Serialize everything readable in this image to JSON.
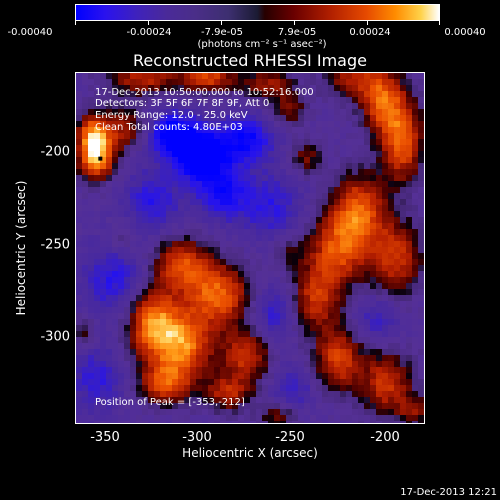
{
  "colorbar": {
    "ticks": [
      "-0.00040",
      "-0.00024",
      "-7.9e-05",
      "7.9e-05",
      "0.00024",
      "0.00040"
    ],
    "units": "(photons cm⁻² s⁻¹ asec⁻²)"
  },
  "chart_data": {
    "type": "heatmap",
    "title": "Reconstructed RHESSI Image",
    "xlabel": "Heliocentric X (arcsec)",
    "ylabel": "Heliocentric Y (arcsec)",
    "xlim": [
      -366,
      -180
    ],
    "ylim": [
      -354,
      -166
    ],
    "x_ticks": [
      "-350",
      "-300",
      "-250",
      "-200"
    ],
    "y_ticks": [
      "-200",
      "-250",
      "-300"
    ],
    "color_range": [
      -0.0004,
      0.0004
    ],
    "colormap": "blue-purple-black-red-yellow-white",
    "annotations": [
      "17-Dec-2013 10:50:00.000 to 10:52:16.000",
      "Detectors: 3F 5F 6F 7F 8F 9F, Att 0",
      "Energy Range: 12.0 - 25.0 keV",
      "Clean     Total counts: 4.80E+03"
    ],
    "peak_label": "Position of Peak = [-353,-212]",
    "peak": [
      -353,
      -212
    ],
    "blobs": [
      {
        "x": -355,
        "y": -212,
        "v": 0.0004,
        "sx": 7,
        "sy": 8
      },
      {
        "x": -357,
        "y": -199,
        "v": 0.00034,
        "sx": 6,
        "sy": 8
      },
      {
        "x": -340,
        "y": -196,
        "v": 0.00022,
        "sx": 10,
        "sy": 8
      },
      {
        "x": -330,
        "y": -168,
        "v": 0.00026,
        "sx": 14,
        "sy": 7
      },
      {
        "x": -295,
        "y": -168,
        "v": 0.0003,
        "sx": 10,
        "sy": 6
      },
      {
        "x": -263,
        "y": -172,
        "v": 0.00022,
        "sx": 10,
        "sy": 6
      },
      {
        "x": -252,
        "y": -186,
        "v": 0.00018,
        "sx": 7,
        "sy": 6
      },
      {
        "x": -243,
        "y": -212,
        "v": 0.00018,
        "sx": 6,
        "sy": 6
      },
      {
        "x": -220,
        "y": -168,
        "v": 0.00022,
        "sx": 10,
        "sy": 8
      },
      {
        "x": -203,
        "y": -180,
        "v": 0.00032,
        "sx": 8,
        "sy": 12
      },
      {
        "x": -192,
        "y": -202,
        "v": 0.00036,
        "sx": 8,
        "sy": 16
      },
      {
        "x": -215,
        "y": -240,
        "v": 0.00034,
        "sx": 10,
        "sy": 14
      },
      {
        "x": -227,
        "y": -262,
        "v": 0.0003,
        "sx": 11,
        "sy": 14
      },
      {
        "x": -195,
        "y": -265,
        "v": 0.00028,
        "sx": 10,
        "sy": 14
      },
      {
        "x": -238,
        "y": -288,
        "v": 0.00026,
        "sx": 9,
        "sy": 12
      },
      {
        "x": -226,
        "y": -320,
        "v": 0.0003,
        "sx": 9,
        "sy": 12
      },
      {
        "x": -200,
        "y": -333,
        "v": 0.00028,
        "sx": 10,
        "sy": 12
      },
      {
        "x": -185,
        "y": -348,
        "v": 0.00018,
        "sx": 6,
        "sy": 6
      },
      {
        "x": -310,
        "y": -268,
        "v": 0.0003,
        "sx": 10,
        "sy": 10
      },
      {
        "x": -290,
        "y": -285,
        "v": 0.00036,
        "sx": 12,
        "sy": 12
      },
      {
        "x": -325,
        "y": -300,
        "v": 0.00038,
        "sx": 10,
        "sy": 14
      },
      {
        "x": -308,
        "y": -312,
        "v": 0.00036,
        "sx": 11,
        "sy": 12
      },
      {
        "x": -275,
        "y": -318,
        "v": 0.00028,
        "sx": 9,
        "sy": 10
      },
      {
        "x": -318,
        "y": -333,
        "v": 0.0003,
        "sx": 10,
        "sy": 8
      },
      {
        "x": -285,
        "y": -338,
        "v": 0.00024,
        "sx": 9,
        "sy": 7
      },
      {
        "x": -258,
        "y": -350,
        "v": 0.00018,
        "sx": 7,
        "sy": 5
      },
      {
        "x": -362,
        "y": -305,
        "v": 0.00014,
        "sx": 5,
        "sy": 6
      },
      {
        "x": -340,
        "y": -255,
        "v": 0.00012,
        "sx": 6,
        "sy": 6
      },
      {
        "x": -252,
        "y": -262,
        "v": 0.00012,
        "sx": 6,
        "sy": 6
      },
      {
        "x": -300,
        "y": -210,
        "v": -0.0004,
        "sx": 10,
        "sy": 9
      },
      {
        "x": -315,
        "y": -198,
        "v": -0.0003,
        "sx": 10,
        "sy": 8
      },
      {
        "x": -275,
        "y": -202,
        "v": -0.00026,
        "sx": 10,
        "sy": 9
      },
      {
        "x": -288,
        "y": -230,
        "v": -0.00022,
        "sx": 10,
        "sy": 10
      },
      {
        "x": -325,
        "y": -235,
        "v": -0.00018,
        "sx": 10,
        "sy": 12
      },
      {
        "x": -262,
        "y": -238,
        "v": -0.00016,
        "sx": 12,
        "sy": 12
      },
      {
        "x": -345,
        "y": -278,
        "v": -0.00018,
        "sx": 12,
        "sy": 14
      },
      {
        "x": -355,
        "y": -330,
        "v": -0.00016,
        "sx": 10,
        "sy": 12
      },
      {
        "x": -260,
        "y": -295,
        "v": -0.00016,
        "sx": 8,
        "sy": 10
      },
      {
        "x": -205,
        "y": -298,
        "v": -0.00014,
        "sx": 8,
        "sy": 8
      },
      {
        "x": -250,
        "y": -335,
        "v": -0.00014,
        "sx": 8,
        "sy": 8
      }
    ],
    "background_level": -0.00012
  },
  "stamp": "17-Dec-2013 12:21"
}
